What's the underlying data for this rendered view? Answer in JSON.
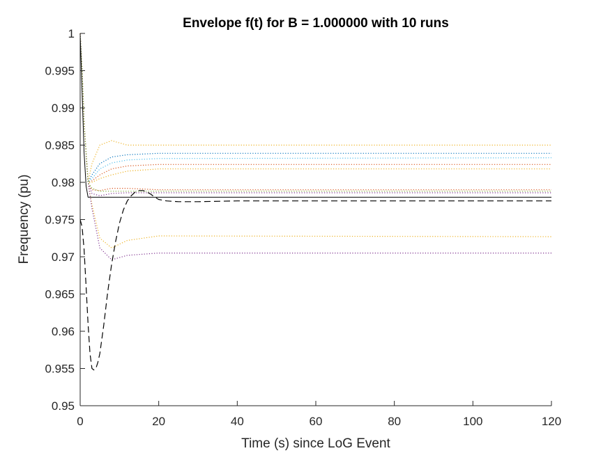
{
  "chart_data": {
    "type": "line",
    "title": "Envelope f(t) for B = 1.000000 with 10 runs",
    "xlabel": "Time (s) since LoG Event",
    "ylabel": "Frequency (pu)",
    "xlim": [
      0,
      120
    ],
    "ylim": [
      0.95,
      1.0
    ],
    "xticks": [
      0,
      20,
      40,
      60,
      80,
      100,
      120
    ],
    "xtick_labels": [
      "0",
      "20",
      "40",
      "60",
      "80",
      "100",
      "120"
    ],
    "yticks": [
      0.95,
      0.955,
      0.96,
      0.965,
      0.97,
      0.975,
      0.98,
      0.985,
      0.99,
      0.995,
      1.0
    ],
    "ytick_labels": [
      "0.95",
      "0.955",
      "0.96",
      "0.965",
      "0.97",
      "0.975",
      "0.98",
      "0.985",
      "0.99",
      "0.995",
      "1"
    ],
    "grid": false,
    "legend": "none",
    "series": [
      {
        "style": "dotted",
        "color": "#EDB120",
        "x": [
          0,
          0.5,
          1,
          2,
          3,
          5,
          8,
          12,
          20,
          120
        ],
        "y": [
          1.0,
          0.995,
          0.988,
          0.98,
          0.9825,
          0.985,
          0.9856,
          0.985,
          0.985,
          0.985
        ]
      },
      {
        "style": "dotted",
        "color": "#0072BD",
        "x": [
          0,
          0.5,
          1,
          2,
          3,
          5,
          8,
          12,
          20,
          120
        ],
        "y": [
          1.0,
          0.995,
          0.988,
          0.98,
          0.981,
          0.9825,
          0.9834,
          0.9837,
          0.9839,
          0.9839
        ]
      },
      {
        "style": "dotted",
        "color": "#4DBEEE",
        "x": [
          0,
          0.5,
          1,
          2,
          3,
          5,
          8,
          12,
          20,
          120
        ],
        "y": [
          1.0,
          0.995,
          0.988,
          0.98,
          0.9805,
          0.9818,
          0.9826,
          0.983,
          0.9832,
          0.9833
        ]
      },
      {
        "style": "dotted",
        "color": "#D95319",
        "x": [
          0,
          0.5,
          1,
          2,
          3,
          5,
          8,
          12,
          20,
          120
        ],
        "y": [
          1.0,
          0.995,
          0.988,
          0.98,
          0.9802,
          0.981,
          0.9818,
          0.9822,
          0.9824,
          0.9824
        ]
      },
      {
        "style": "dotted",
        "color": "#EDB120",
        "x": [
          0,
          0.5,
          1,
          2,
          3,
          5,
          8,
          12,
          20,
          120
        ],
        "y": [
          1.0,
          0.995,
          0.988,
          0.98,
          0.98,
          0.9805,
          0.981,
          0.9815,
          0.9818,
          0.9818
        ]
      },
      {
        "style": "dotted",
        "color": "#D95319",
        "x": [
          0,
          0.5,
          1,
          2,
          3,
          5,
          8,
          12,
          20,
          120
        ],
        "y": [
          1.0,
          0.995,
          0.988,
          0.98,
          0.979,
          0.9789,
          0.9792,
          0.9792,
          0.979,
          0.979
        ]
      },
      {
        "style": "dotted",
        "color": "#7E2F8E",
        "x": [
          0,
          0.5,
          1,
          2,
          3,
          5,
          8,
          12,
          20,
          120
        ],
        "y": [
          1.0,
          0.995,
          0.988,
          0.98,
          0.9785,
          0.9782,
          0.9785,
          0.9786,
          0.9786,
          0.9786
        ]
      },
      {
        "style": "dotted",
        "color": "#EDB120",
        "x": [
          0,
          0.5,
          1,
          2,
          3,
          5,
          8,
          12,
          20,
          120
        ],
        "y": [
          1.0,
          0.995,
          0.988,
          0.98,
          0.977,
          0.9725,
          0.9712,
          0.9722,
          0.9728,
          0.9727
        ]
      },
      {
        "style": "dotted",
        "color": "#7E2F8E",
        "x": [
          0,
          0.5,
          1,
          2,
          3,
          5,
          8,
          12,
          20,
          120
        ],
        "y": [
          1.0,
          0.995,
          0.988,
          0.98,
          0.9765,
          0.9712,
          0.9696,
          0.9702,
          0.9705,
          0.9705
        ]
      },
      {
        "style": "dotted",
        "color": "#77AC30",
        "x": [
          0,
          0.5,
          1,
          2,
          3,
          5,
          8,
          12,
          20,
          120
        ],
        "y": [
          1.0,
          0.995,
          0.988,
          0.98,
          0.9792,
          0.9788,
          0.9788,
          0.9788,
          0.9788,
          0.9788
        ]
      },
      {
        "style": "solid",
        "color": "#000000",
        "x": [
          0,
          0.5,
          1,
          1.5,
          2,
          3,
          5,
          10,
          20,
          120
        ],
        "y": [
          1.0,
          0.992,
          0.984,
          0.9795,
          0.978,
          0.978,
          0.978,
          0.978,
          0.978,
          0.978
        ]
      },
      {
        "style": "dashed",
        "color": "#000000",
        "x": [
          0,
          0.5,
          1,
          1.5,
          2,
          2.5,
          3,
          3.5,
          4,
          4.5,
          5,
          6,
          7,
          8,
          9,
          10,
          11,
          12,
          13,
          14,
          15,
          16,
          17,
          18,
          19,
          20,
          22,
          25,
          30,
          40,
          60,
          120
        ],
        "y": [
          0.975,
          0.974,
          0.971,
          0.966,
          0.961,
          0.957,
          0.955,
          0.9548,
          0.955,
          0.9558,
          0.957,
          0.9608,
          0.9652,
          0.969,
          0.972,
          0.9745,
          0.9763,
          0.9775,
          0.9782,
          0.9787,
          0.9789,
          0.9789,
          0.9787,
          0.9784,
          0.978,
          0.9777,
          0.9775,
          0.9774,
          0.9774,
          0.9775,
          0.9775,
          0.9775
        ]
      }
    ]
  }
}
